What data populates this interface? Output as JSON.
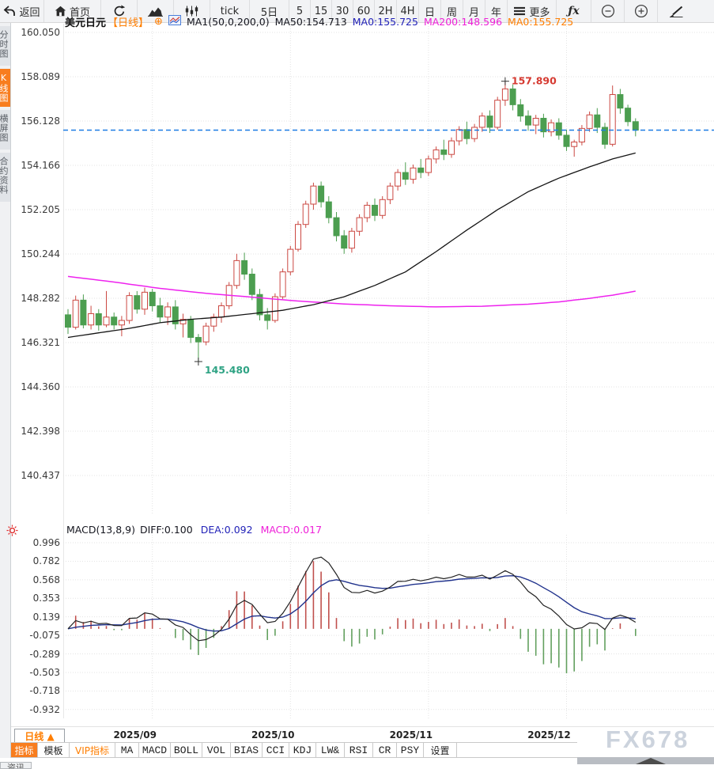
{
  "topbar": {
    "items": [
      {
        "name": "back",
        "label": "返回",
        "icon": "back"
      },
      {
        "name": "home",
        "label": "首页",
        "icon": "home"
      },
      {
        "name": "refresh",
        "icon": "refresh"
      },
      {
        "name": "area-chart",
        "icon": "area-chart"
      },
      {
        "name": "candle-chart",
        "icon": "candle-chart"
      },
      {
        "name": "interval-tick",
        "label": "tick"
      },
      {
        "name": "interval-5d",
        "label": "5日"
      },
      {
        "name": "interval-5",
        "label": "5"
      },
      {
        "name": "interval-15",
        "label": "15"
      },
      {
        "name": "interval-30",
        "label": "30"
      },
      {
        "name": "interval-60",
        "label": "60"
      },
      {
        "name": "interval-2h",
        "label": "2H"
      },
      {
        "name": "interval-4h",
        "label": "4H"
      },
      {
        "name": "interval-day",
        "label": "日"
      },
      {
        "name": "interval-week",
        "label": "周"
      },
      {
        "name": "interval-month",
        "label": "月"
      },
      {
        "name": "interval-year",
        "label": "年"
      },
      {
        "name": "more",
        "label": "更多",
        "icon": "menu"
      },
      {
        "name": "fx-functions",
        "label": "ƒx"
      },
      {
        "name": "zoom-out",
        "icon": "zoom-out"
      },
      {
        "name": "zoom-in",
        "icon": "zoom-in"
      },
      {
        "name": "draw",
        "icon": "pen"
      }
    ]
  },
  "sidebar": {
    "tabs": [
      {
        "label": "分时图",
        "active": false
      },
      {
        "label": "K线图",
        "active": true
      },
      {
        "label": "横屏图",
        "active": false
      },
      {
        "label": "合约资料",
        "active": false
      }
    ]
  },
  "chart_header": {
    "symbol": "美元日元",
    "period_tag": "【日线】",
    "ma_setting": "MA1(50,0,200,0)",
    "ma50_text": "MA50:154.713",
    "ma0_blue_text": "MA0:155.725",
    "ma200_text": "MA200:148.596",
    "ma0_orange_text": "MA0:155.725"
  },
  "macd_header": {
    "setting": "MACD(13,8,9)",
    "diff_text": "DIFF:0.100",
    "dea_text": "DEA:0.092",
    "macd_text": "MACD:0.017"
  },
  "footer": {
    "period_button": "日线 ▲",
    "indicator_tabs": [
      {
        "label": "指标",
        "style": "active",
        "cn": true
      },
      {
        "label": "模板",
        "cn": true
      },
      {
        "label": "VIP指标",
        "style": "vip",
        "cn": true
      },
      {
        "label": "MA"
      },
      {
        "label": "MACD"
      },
      {
        "label": "BOLL"
      },
      {
        "label": "VOL"
      },
      {
        "label": "BIAS"
      },
      {
        "label": "CCI"
      },
      {
        "label": "KDJ"
      },
      {
        "label": "LW&"
      },
      {
        "label": "RSI"
      },
      {
        "label": "CR"
      },
      {
        "label": "PSY"
      },
      {
        "label": "设置",
        "cn": true
      }
    ],
    "watermark": "FX678",
    "partial_tab": "资讯"
  },
  "colors": {
    "up": "#cb4842",
    "down": "#4c9e50",
    "ma50": "#141414",
    "ma200": "#ee22ee",
    "last_price_line": "#1d7de4",
    "diff_line": "#222222",
    "dea_line": "#21338d",
    "hist_pos": "#c0504d",
    "hist_neg": "#63a05f",
    "grid": "#e3e3e3",
    "high_label": "#d63a31",
    "low_label": "#2fa384",
    "accent": "#ff7e00"
  },
  "chart_data": {
    "type": "candlestick",
    "symbol": "美元日元",
    "period": "日线",
    "price_axis_ticks": [
      "160.050",
      "158.089",
      "156.128",
      "154.166",
      "152.205",
      "150.244",
      "148.282",
      "146.321",
      "144.360",
      "142.398",
      "140.437"
    ],
    "macd_axis_ticks": [
      "0.996",
      "0.782",
      "0.568",
      "0.353",
      "0.139",
      "-0.075",
      "-0.289",
      "-0.503",
      "-0.718",
      "-0.932"
    ],
    "x_axis_labels": [
      "2025/09",
      "2025/10",
      "2025/11",
      "2025/12"
    ],
    "x_gridline_bar_indices": [
      11,
      29,
      47,
      65
    ],
    "price_axis_top": 160.05,
    "price_axis_step": 1.9613,
    "macd_axis_top": 0.996,
    "macd_axis_step": 0.2143,
    "last_close": 155.725,
    "high_annotation": {
      "bar": 57,
      "price": 157.89,
      "label": "157.890"
    },
    "low_annotation": {
      "bar": 17,
      "price": 145.48,
      "label": "145.480"
    },
    "candles": [
      [
        147.55,
        147.8,
        146.7,
        147.0
      ],
      [
        147.0,
        148.4,
        146.9,
        148.2
      ],
      [
        148.2,
        148.45,
        146.95,
        147.1
      ],
      [
        147.1,
        147.95,
        146.9,
        147.6
      ],
      [
        147.6,
        147.8,
        146.85,
        147.1
      ],
      [
        147.1,
        148.6,
        147.0,
        147.45
      ],
      [
        147.45,
        147.65,
        146.9,
        147.1
      ],
      [
        147.1,
        147.5,
        146.6,
        147.3
      ],
      [
        147.3,
        148.55,
        147.15,
        148.4
      ],
      [
        148.4,
        148.6,
        147.6,
        147.8
      ],
      [
        147.8,
        148.75,
        147.55,
        148.55
      ],
      [
        148.55,
        148.7,
        147.7,
        147.95
      ],
      [
        147.95,
        148.3,
        147.2,
        147.45
      ],
      [
        147.45,
        148.1,
        147.1,
        147.9
      ],
      [
        147.9,
        148.2,
        146.9,
        147.15
      ],
      [
        147.15,
        147.6,
        146.55,
        147.35
      ],
      [
        147.35,
        147.5,
        146.3,
        146.55
      ],
      [
        146.55,
        146.7,
        145.48,
        146.35
      ],
      [
        146.35,
        147.2,
        146.2,
        147.05
      ],
      [
        147.05,
        147.6,
        146.8,
        147.45
      ],
      [
        147.45,
        148.1,
        147.2,
        147.95
      ],
      [
        147.95,
        149.0,
        147.8,
        148.85
      ],
      [
        148.85,
        150.25,
        148.7,
        149.95
      ],
      [
        149.95,
        150.3,
        149.1,
        149.35
      ],
      [
        149.35,
        149.6,
        148.2,
        148.45
      ],
      [
        148.45,
        148.7,
        147.3,
        147.55
      ],
      [
        147.55,
        147.85,
        146.9,
        147.3
      ],
      [
        147.3,
        148.5,
        147.2,
        148.35
      ],
      [
        148.35,
        149.6,
        148.25,
        149.45
      ],
      [
        149.45,
        150.6,
        149.3,
        150.45
      ],
      [
        150.45,
        151.7,
        150.35,
        151.55
      ],
      [
        151.55,
        152.6,
        151.4,
        152.45
      ],
      [
        152.45,
        153.4,
        152.2,
        153.25
      ],
      [
        153.25,
        153.45,
        152.3,
        152.55
      ],
      [
        152.55,
        152.8,
        151.6,
        151.85
      ],
      [
        151.85,
        152.1,
        150.8,
        151.05
      ],
      [
        151.05,
        151.3,
        150.25,
        150.5
      ],
      [
        150.5,
        151.4,
        150.3,
        151.25
      ],
      [
        151.25,
        152.0,
        151.05,
        151.85
      ],
      [
        151.85,
        152.55,
        151.65,
        152.4
      ],
      [
        152.4,
        152.7,
        151.7,
        151.95
      ],
      [
        151.95,
        152.8,
        151.8,
        152.65
      ],
      [
        152.65,
        153.4,
        152.45,
        153.25
      ],
      [
        153.25,
        154.0,
        153.05,
        153.85
      ],
      [
        153.85,
        154.3,
        153.3,
        153.55
      ],
      [
        153.55,
        154.2,
        153.35,
        154.05
      ],
      [
        154.05,
        154.45,
        153.6,
        153.85
      ],
      [
        153.85,
        154.6,
        153.7,
        154.45
      ],
      [
        154.45,
        155.0,
        154.25,
        154.85
      ],
      [
        154.85,
        155.3,
        154.4,
        154.65
      ],
      [
        154.65,
        155.4,
        154.5,
        155.25
      ],
      [
        155.25,
        155.9,
        155.05,
        155.75
      ],
      [
        155.75,
        156.1,
        155.1,
        155.35
      ],
      [
        155.35,
        156.0,
        155.2,
        155.85
      ],
      [
        155.85,
        156.5,
        155.65,
        156.35
      ],
      [
        156.35,
        156.6,
        155.6,
        155.85
      ],
      [
        155.85,
        157.2,
        155.75,
        157.05
      ],
      [
        157.05,
        157.89,
        156.8,
        157.55
      ],
      [
        157.55,
        157.75,
        156.6,
        156.85
      ],
      [
        156.85,
        157.1,
        156.1,
        156.35
      ],
      [
        156.35,
        156.6,
        155.7,
        155.95
      ],
      [
        155.95,
        156.4,
        155.55,
        156.25
      ],
      [
        156.25,
        156.45,
        155.4,
        155.65
      ],
      [
        155.65,
        156.2,
        155.45,
        156.05
      ],
      [
        156.05,
        156.25,
        155.3,
        155.5
      ],
      [
        155.5,
        155.75,
        154.8,
        155.0
      ],
      [
        155.0,
        155.3,
        154.55,
        155.2
      ],
      [
        155.2,
        155.95,
        155.05,
        155.8
      ],
      [
        155.8,
        156.55,
        155.65,
        156.4
      ],
      [
        156.4,
        156.7,
        155.6,
        155.85
      ],
      [
        155.85,
        156.05,
        154.9,
        155.1
      ],
      [
        155.1,
        157.7,
        155.0,
        157.3
      ],
      [
        157.3,
        157.55,
        156.45,
        156.7
      ],
      [
        156.7,
        156.85,
        155.9,
        156.1
      ],
      [
        156.1,
        156.25,
        155.45,
        155.725
      ]
    ],
    "ma50": {
      "points": [
        [
          0,
          146.55
        ],
        [
          4,
          146.75
        ],
        [
          8,
          146.95
        ],
        [
          12,
          147.2
        ],
        [
          16,
          147.35
        ],
        [
          20,
          147.45
        ],
        [
          24,
          147.6
        ],
        [
          28,
          147.75
        ],
        [
          32,
          148.0
        ],
        [
          36,
          148.35
        ],
        [
          40,
          148.85
        ],
        [
          44,
          149.45
        ],
        [
          48,
          150.35
        ],
        [
          52,
          151.3
        ],
        [
          56,
          152.2
        ],
        [
          60,
          153.0
        ],
        [
          64,
          153.6
        ],
        [
          68,
          154.1
        ],
        [
          71,
          154.45
        ],
        [
          74,
          154.713
        ]
      ]
    },
    "ma200": {
      "points": [
        [
          0,
          149.25
        ],
        [
          6,
          149.0
        ],
        [
          12,
          148.72
        ],
        [
          18,
          148.5
        ],
        [
          24,
          148.33
        ],
        [
          30,
          148.16
        ],
        [
          36,
          148.03
        ],
        [
          42,
          147.95
        ],
        [
          48,
          147.9
        ],
        [
          54,
          147.93
        ],
        [
          60,
          148.02
        ],
        [
          64,
          148.12
        ],
        [
          68,
          148.28
        ],
        [
          71,
          148.42
        ],
        [
          74,
          148.596
        ]
      ]
    },
    "macd": {
      "fast": 8,
      "slow": 13,
      "signal": 9,
      "hist_scale": 2
    }
  }
}
